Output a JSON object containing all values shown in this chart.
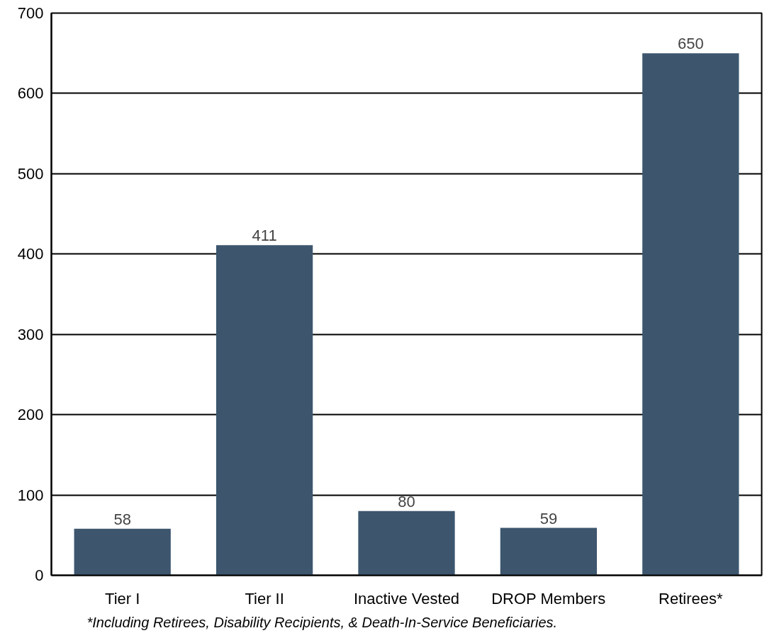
{
  "chart_data": {
    "type": "bar",
    "categories": [
      "Tier I",
      "Tier II",
      "Inactive Vested",
      "DROP Members",
      "Retirees*"
    ],
    "values": [
      58,
      411,
      80,
      59,
      650
    ],
    "color": "#3d566e",
    "ylim": [
      0,
      700
    ],
    "yticks": [
      0,
      100,
      200,
      300,
      400,
      500,
      600,
      700
    ],
    "grid": "y",
    "data_labels": true,
    "annotations": [
      "*Including Retirees, Disability Recipients, & Death-In-Service Beneficiaries."
    ]
  }
}
